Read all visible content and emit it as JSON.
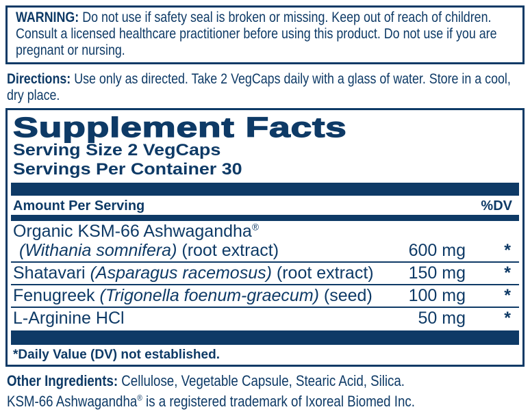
{
  "colors": {
    "navy": "#0e3a66",
    "background": "#ffffff"
  },
  "warning": {
    "label": "WARNING:",
    "text": "Do not use if safety seal is broken or missing. Keep out of reach of children. Consult a licensed healthcare practitioner before using this product. Do not use if you are pregnant or nursing."
  },
  "directions": {
    "label": "Directions:",
    "text": "Use only as directed. Take 2 VegCaps daily with a glass of water. Store in a cool, dry place."
  },
  "supplement_facts": {
    "title": "Supplement Facts",
    "serving_size": "Serving Size 2 VegCaps",
    "servings_per_container": "Servings Per Container 30",
    "header": {
      "amount_per_serving": "Amount Per Serving",
      "percent_dv": "%DV"
    },
    "rows": [
      {
        "name_line1": "Organic KSM-66 Ashwagandha",
        "name_line1_reg_mark": "®",
        "name_line2_italic": "(Withania somnifera)",
        "name_line2_regular": " (root extract)",
        "amount": "600 mg",
        "dv": "*"
      },
      {
        "name_regular_prefix": "Shatavari ",
        "name_italic": "(Asparagus racemosus)",
        "name_regular_suffix": " (root extract)",
        "amount": "150 mg",
        "dv": "*"
      },
      {
        "name_regular_prefix": "Fenugreek ",
        "name_italic": "(Trigonella foenum-graecum)",
        "name_regular_suffix": " (seed)",
        "amount": "100 mg",
        "dv": "*"
      },
      {
        "name_regular_prefix": "L-Arginine HCl",
        "name_italic": "",
        "name_regular_suffix": "",
        "amount": "50 mg",
        "dv": "*"
      }
    ],
    "footnote": "*Daily Value (DV) not established."
  },
  "other_ingredients": {
    "label": "Other Ingredients:",
    "text": "Cellulose, Vegetable Capsule, Stearic Acid, Silica."
  },
  "trademark": {
    "name": "KSM-66 Ashwagandha",
    "reg_mark": "®",
    "text": " is a registered trademark of Ixoreal Biomed Inc."
  }
}
